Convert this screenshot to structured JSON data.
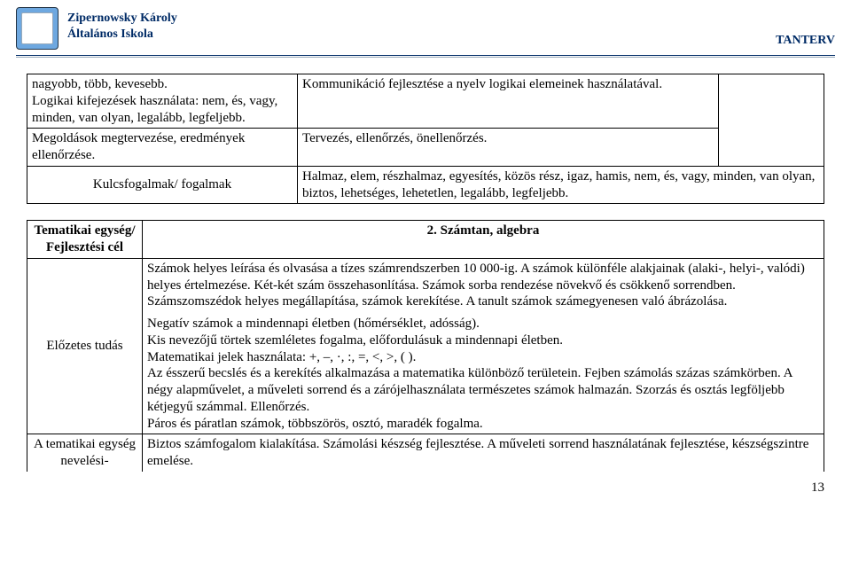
{
  "header": {
    "school_line1": "Zipernowsky Károly",
    "school_line2": "Általános Iskola",
    "right": "TANTERV"
  },
  "table1": {
    "r1c1": "nagyobb, több, kevesebb.\nLogikai kifejezések használata: nem, és, vagy, minden, van olyan, legalább, legfeljebb.",
    "r1c2": "Kommunikáció fejlesztése a nyelv logikai elemeinek használatával.",
    "r2c1": "Megoldások megtervezése, eredmények ellenőrzése.",
    "r2c2": "Tervezés, ellenőrzés, önellenőrzés.",
    "r3left": "Kulcsfogalmak/ fogalmak",
    "r3right": "Halmaz, elem, részhalmaz, egyesítés, közös rész, igaz, hamis, nem, és, vagy, minden, van olyan, biztos, lehetséges, lehetetlen, legalább, legfeljebb."
  },
  "table2": {
    "r1left": "Tematikai egység/ Fejlesztési cél",
    "r1right": "2. Számtan, algebra",
    "r2left": "Előzetes tudás",
    "r2_p1": "Számok helyes leírása és olvasása a tízes számrendszerben 10 000-ig. A számok különféle alakjainak (alaki-, helyi-, valódi) helyes értelmezése. Két-két szám összehasonlítása. Számok sorba rendezése növekvő és csökkenő sorrendben. Számszomszédok helyes megállapítása, számok kerekítése. A tanult számok számegyenesen való ábrázolása.",
    "r2_p2": "Negatív számok a mindennapi életben (hőmérséklet, adósság).\nKis nevezőjű törtek szemléletes fogalma, előfordulásuk a mindennapi életben.\nMatematikai jelek használata: +, –, ·, :, =, <, >, ( ).\nAz ésszerű becslés és a kerekítés alkalmazása a matematika különböző területein. Fejben számolás százas számkörben. A négy alapművelet, a műveleti sorrend és a zárójelhasználata természetes számok halmazán. Szorzás és osztás legföljebb kétjegyű számmal. Ellenőrzés.\nPáros és páratlan számok, többszörös, osztó, maradék fogalma.",
    "r3left": "A tematikai egység nevelési-",
    "r3right": "Biztos számfogalom kialakítása. Számolási készség fejlesztése. A műveleti sorrend használatának fejlesztése, készségszintre emelése."
  },
  "pagenum": "13"
}
